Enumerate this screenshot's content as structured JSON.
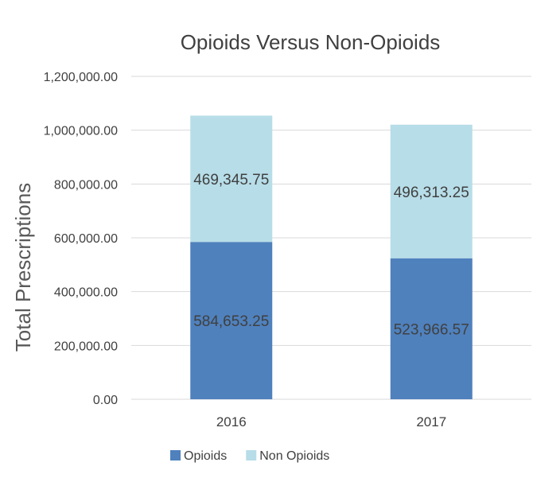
{
  "chart_data": {
    "type": "bar",
    "stacked": true,
    "title": "Opioids Versus Non-Opioids",
    "ylabel": "Total Prescriptions",
    "xlabel": "",
    "categories": [
      "2016",
      "2017"
    ],
    "series": [
      {
        "name": "Opioids",
        "values": [
          584653.25,
          523966.57
        ],
        "labels": [
          "584,653.25",
          "523,966.57"
        ],
        "color": "#4f81bd"
      },
      {
        "name": "Non Opioids",
        "values": [
          469345.75,
          496313.25
        ],
        "labels": [
          "469,345.75",
          "496,313.25"
        ],
        "color": "#b7dde8"
      }
    ],
    "ylim": [
      0,
      1200000
    ],
    "yticks": [
      0,
      200000,
      400000,
      600000,
      800000,
      1000000,
      1200000
    ],
    "ytick_labels": [
      "0.00",
      "200,000.00",
      "400,000.00",
      "600,000.00",
      "800,000.00",
      "1,000,000.00",
      "1,200,000.00"
    ],
    "grid": true,
    "legend_position": "bottom"
  }
}
